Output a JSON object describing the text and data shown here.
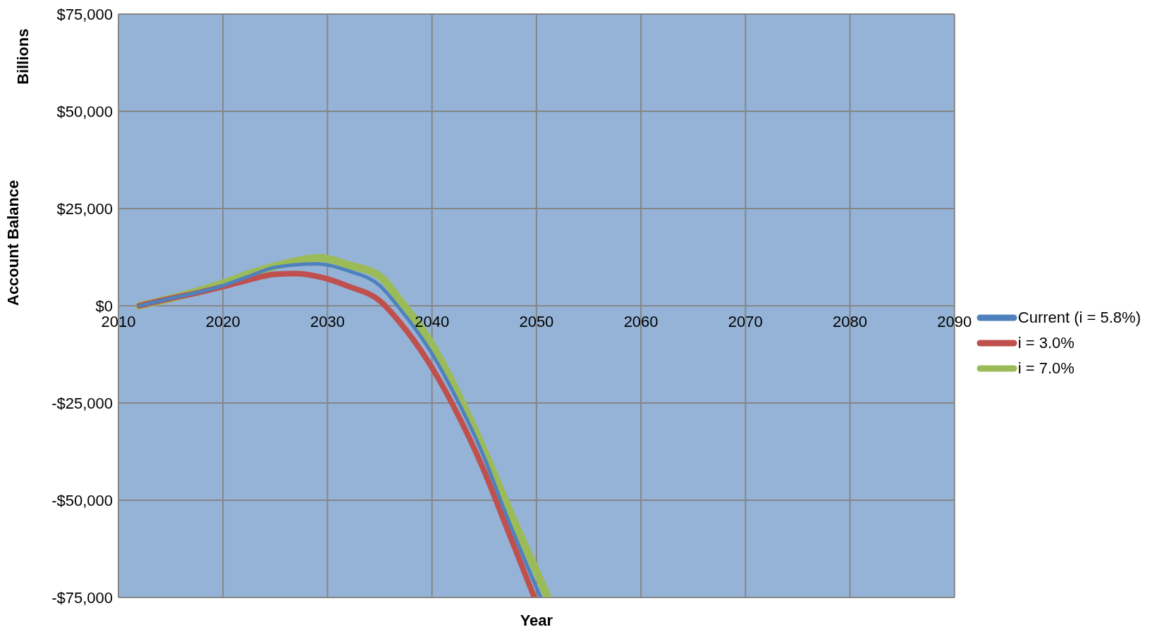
{
  "chart_data": {
    "type": "line",
    "xlabel": "Year",
    "ylabel": "Account Balance",
    "annotations": [
      "Billions"
    ],
    "xlim": [
      2010,
      2090
    ],
    "xticks": [
      2010,
      2020,
      2030,
      2040,
      2050,
      2060,
      2070,
      2080,
      2090
    ],
    "ylim": [
      -75000,
      75000
    ],
    "yticks": [
      {
        "value": -75000,
        "label": "-$75,000"
      },
      {
        "value": -50000,
        "label": "-$50,000"
      },
      {
        "value": -25000,
        "label": "-$25,000"
      },
      {
        "value": 0,
        "label": "$0"
      },
      {
        "value": 25000,
        "label": "$25,000"
      },
      {
        "value": 50000,
        "label": "$50,000"
      },
      {
        "value": 75000,
        "label": "$75,000"
      }
    ],
    "grid": true,
    "legend": "right",
    "marker": "none",
    "line_style": "solid",
    "series": [
      {
        "name": "Current (i = 5.8%)",
        "color": "#4f81bd",
        "x": [
          2012,
          2015,
          2017.5,
          2020,
          2022.5,
          2025,
          2029,
          2032,
          2035,
          2037,
          2040,
          2042,
          2045,
          2047,
          2050.4
        ],
        "values": [
          0,
          1900,
          3400,
          5200,
          7600,
          9900,
          10800,
          9000,
          5200,
          -1000,
          -12300,
          -22000,
          -39000,
          -53000,
          -75000
        ]
      },
      {
        "name": "i = 3.0%",
        "color": "#c0504d",
        "x": [
          2012,
          2015,
          2017.5,
          2020,
          2022.5,
          2025,
          2027,
          2030,
          2032,
          2035,
          2037,
          2040,
          2042,
          2045,
          2047,
          2049.8
        ],
        "values": [
          0,
          1900,
          3300,
          4900,
          6700,
          8100,
          8300,
          6900,
          5000,
          1300,
          -4500,
          -15900,
          -25500,
          -42500,
          -56000,
          -75000
        ]
      },
      {
        "name": "i = 7.0%",
        "color": "#9bbb59",
        "x": [
          2012,
          2015,
          2017.5,
          2020,
          2022.5,
          2025,
          2029.3,
          2032,
          2035,
          2037,
          2040,
          2042,
          2045,
          2047,
          2051.1
        ],
        "values": [
          0,
          1900,
          3700,
          5800,
          8200,
          10200,
          12300,
          10500,
          7600,
          1200,
          -10000,
          -20000,
          -37300,
          -50000,
          -75000
        ]
      }
    ]
  }
}
